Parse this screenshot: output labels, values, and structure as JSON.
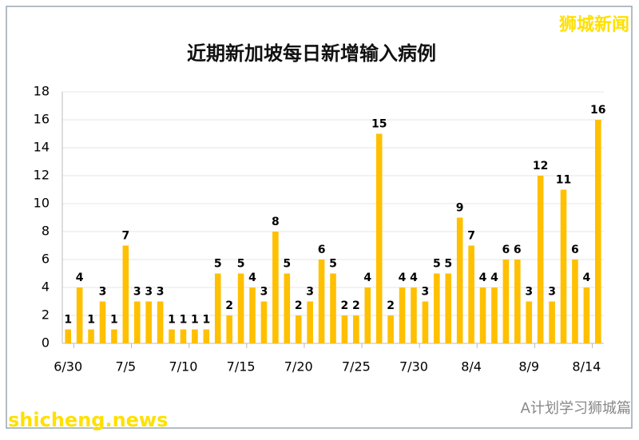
{
  "chart_data": {
    "type": "bar",
    "title": "近期新加坡每日新增输入病例",
    "categories": [
      "6/30",
      null,
      null,
      null,
      null,
      "7/5",
      null,
      null,
      null,
      null,
      "7/10",
      null,
      null,
      null,
      null,
      "7/15",
      null,
      null,
      null,
      null,
      "7/20",
      null,
      null,
      null,
      null,
      "7/25",
      null,
      null,
      null,
      null,
      "7/30",
      null,
      null,
      null,
      null,
      "8/4",
      null,
      null,
      null,
      null,
      "8/9",
      null,
      null,
      null,
      null,
      "8/14",
      null
    ],
    "values": [
      1,
      4,
      1,
      3,
      1,
      7,
      3,
      3,
      3,
      1,
      1,
      1,
      1,
      5,
      2,
      5,
      4,
      3,
      8,
      5,
      2,
      3,
      6,
      5,
      2,
      2,
      4,
      15,
      2,
      4,
      4,
      3,
      5,
      5,
      9,
      7,
      4,
      4,
      6,
      6,
      3,
      12,
      3,
      11,
      6,
      4,
      16
    ],
    "color": "#ffc000",
    "ylim": [
      0,
      18
    ],
    "yticks": [
      0,
      2,
      4,
      6,
      8,
      10,
      12,
      14,
      16,
      18
    ],
    "grid": true,
    "annotations": [
      "狮城新闻",
      "A计划学习狮城篇",
      "shicheng.news"
    ]
  }
}
